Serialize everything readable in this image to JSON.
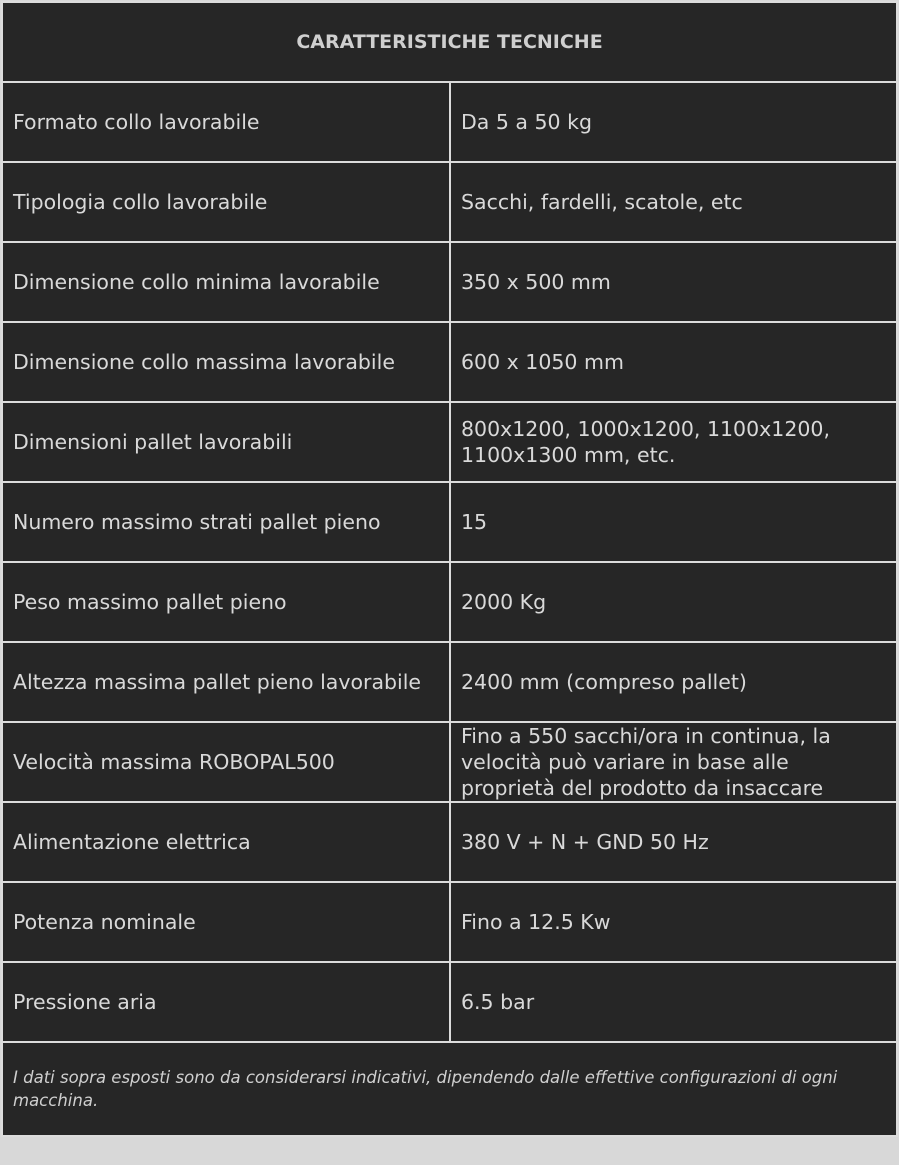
{
  "title": "CARATTERISTICHE TECNICHE",
  "rows": [
    {
      "label": "Formato collo lavorabile",
      "value": "Da 5 a 50 kg"
    },
    {
      "label": "Tipologia collo lavorabile",
      "value": "Sacchi, fardelli, scatole, etc"
    },
    {
      "label": "Dimensione collo minima lavorabile",
      "value": "350 x 500 mm"
    },
    {
      "label": "Dimensione collo massima lavorabile",
      "value": "600 x 1050 mm"
    },
    {
      "label": "Dimensioni pallet lavorabili",
      "value": "800x1200, 1000x1200, 1100x1200, 1100x1300 mm, etc."
    },
    {
      "label": "Numero massimo strati pallet pieno",
      "value": "15"
    },
    {
      "label": "Peso massimo pallet pieno",
      "value": "2000 Kg"
    },
    {
      "label": "Altezza massima pallet pieno lavorabile",
      "value": "2400 mm (compreso pallet)"
    },
    {
      "label": "Velocità massima ROBOPAL500",
      "value": "Fino a 550 sacchi/ora in continua, la velocità può variare in base alle proprietà del prodotto da insaccare"
    },
    {
      "label": "Alimentazione elettrica",
      "value": "380 V + N + GND   50 Hz"
    },
    {
      "label": "Potenza nominale",
      "value": "Fino a 12.5 Kw"
    },
    {
      "label": "Pressione aria",
      "value": "6.5 bar"
    }
  ],
  "footnote": "I dati sopra esposti sono da considerarsi indicativi, dipendendo dalle effettive configurazioni di ogni macchina."
}
